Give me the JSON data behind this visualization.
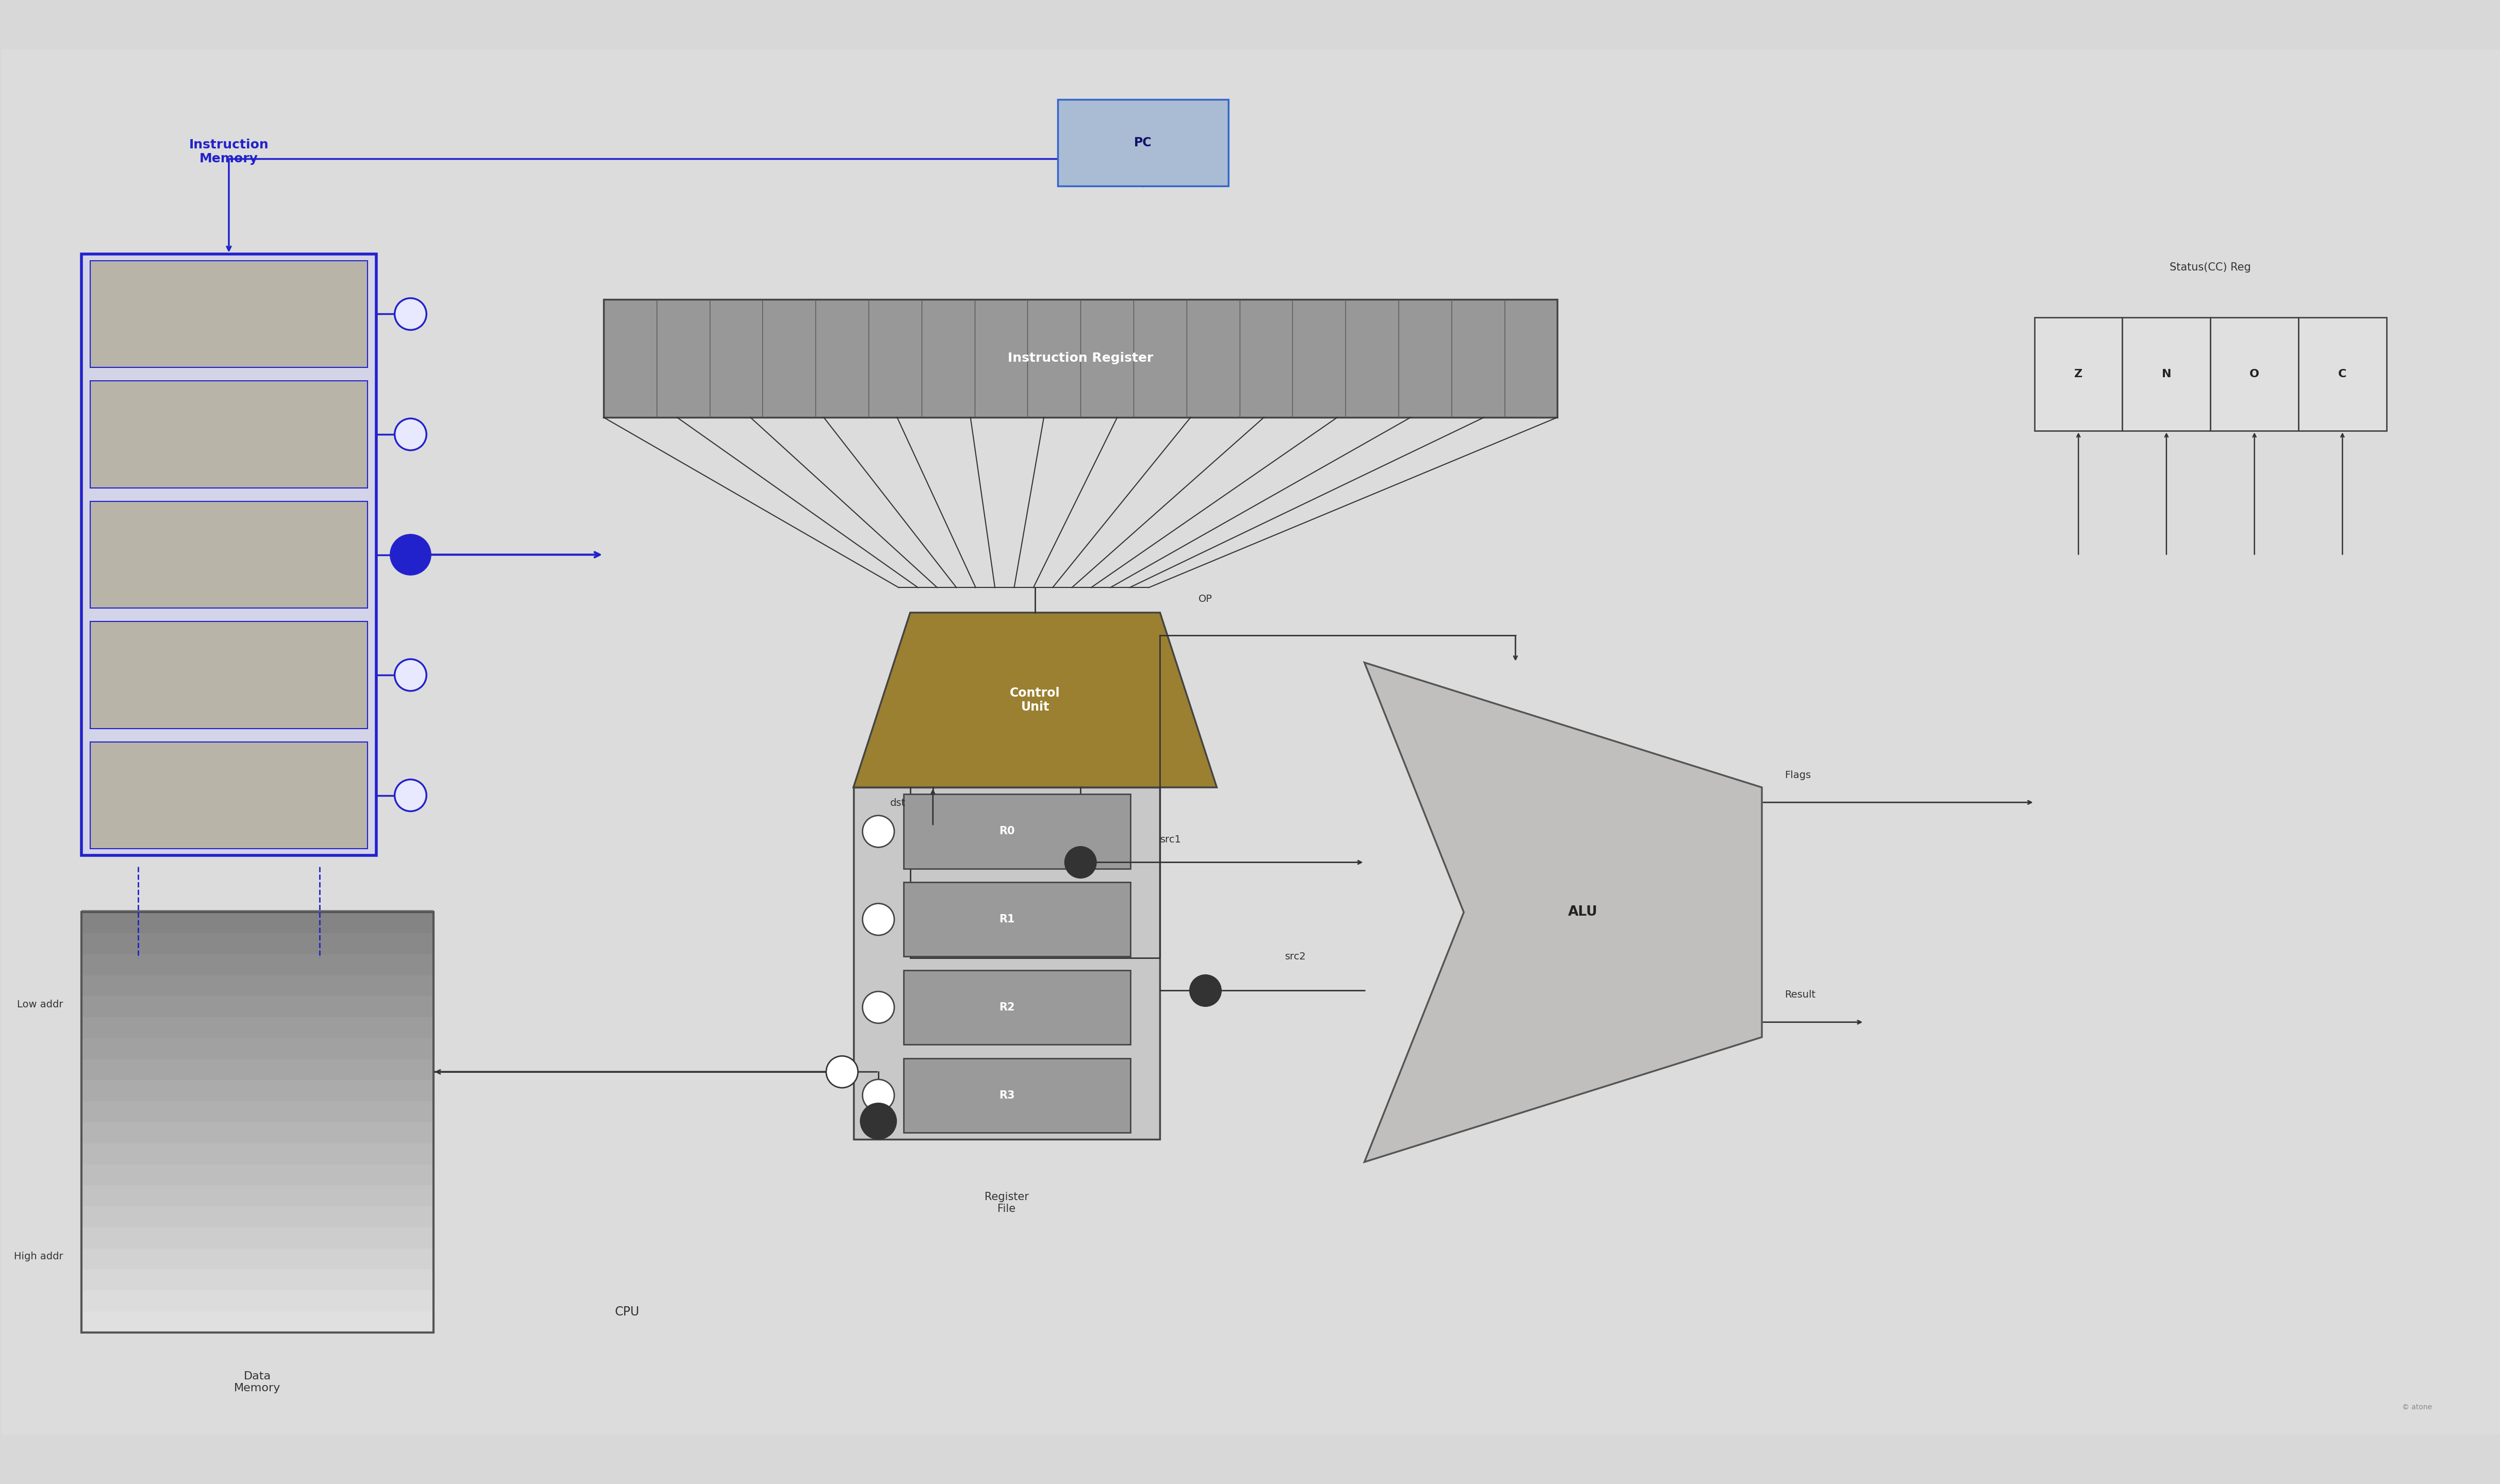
{
  "bg_color": "#d8d8d8",
  "instruction_memory_label": "Instruction\nMemory",
  "instruction_memory_border": "#2222cc",
  "instruction_memory_fill": "#b8b4a8",
  "memory_rows": 5,
  "pc_label": "PC",
  "pc_border": "#3366cc",
  "pc_fill": "#aabbd4",
  "instruction_register_label": "Instruction Register",
  "ir_fill": "#a0a0a0",
  "ir_border": "#555555",
  "control_unit_label": "Control\nUnit",
  "cu_fill_top": "#7a6a3a",
  "cu_fill_bot": "#b09840",
  "alu_label": "ALU",
  "alu_fill": "#c0bfbe",
  "alu_border": "#555555",
  "register_file_label": "Register\nFile",
  "rf_fill": "#b0b0b0",
  "rf_border": "#444444",
  "register_names": [
    "R0",
    "R1",
    "R2",
    "R3"
  ],
  "reg_fill": "#9a9a9a",
  "data_memory_label": "Data\nMemory",
  "dm_fill_top": "#e0e0e0",
  "dm_fill_bot": "#888888",
  "dm_border": "#555555",
  "status_reg_label": "Status(CC) Reg",
  "status_cells": [
    "Z",
    "N",
    "O",
    "C"
  ],
  "sr_fill": "#e0e0e0",
  "sr_border": "#444444",
  "cpu_label": "CPU",
  "low_addr_label": "Low addr",
  "high_addr_label": "High addr",
  "dst_label": "dst",
  "src1_label": "src1",
  "src2_label": "src2",
  "op_label": "OP",
  "flags_label": "Flags",
  "result_label": "Result",
  "blue": "#2222cc",
  "black": "#111111",
  "dark": "#333333"
}
